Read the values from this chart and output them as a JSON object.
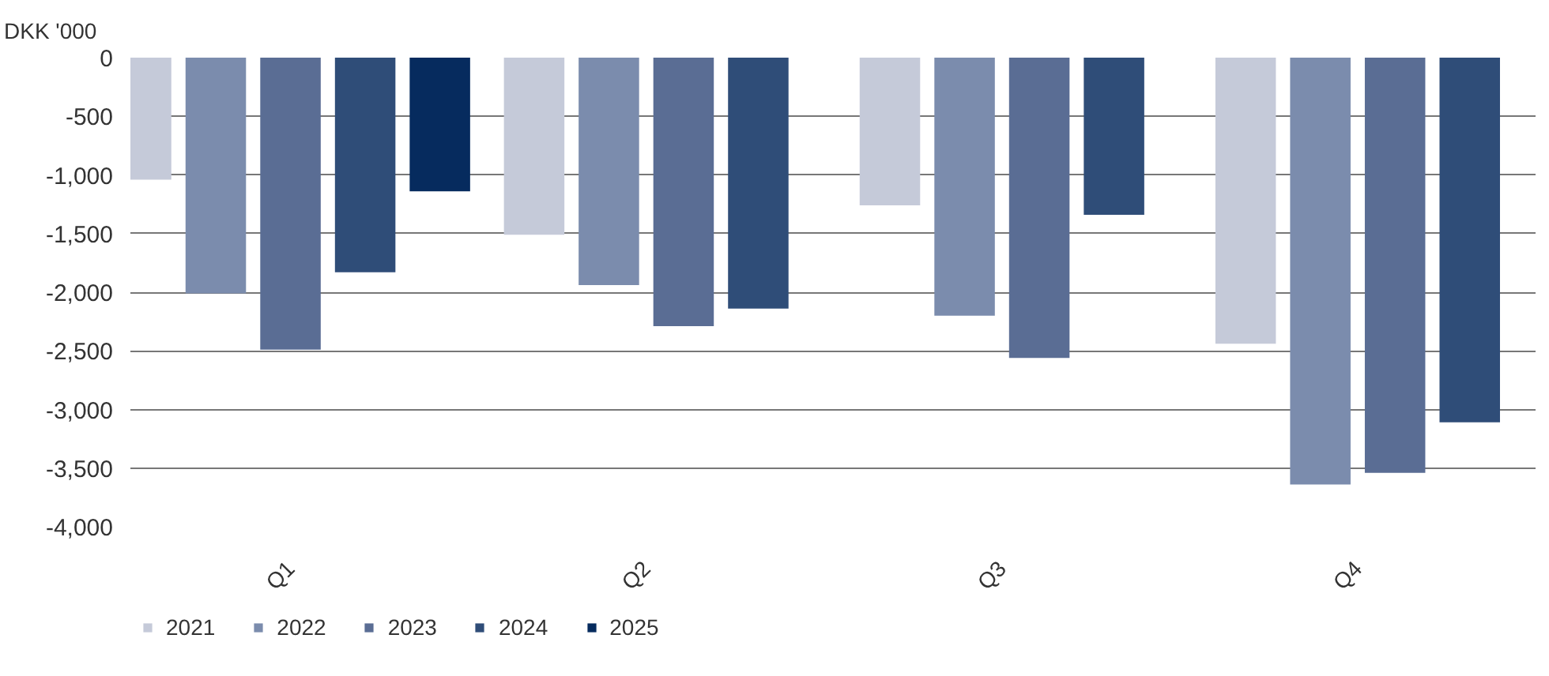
{
  "chart_data": {
    "type": "bar",
    "ylabel": "DKK  '000",
    "categories": [
      "Q1",
      "Q2",
      "Q3",
      "Q4"
    ],
    "series": [
      {
        "name": "2021",
        "color": "#c5cad9",
        "values": [
          -1040,
          -1510,
          -1260,
          -2440
        ]
      },
      {
        "name": "2022",
        "color": "#7b8cad",
        "values": [
          -2010,
          -1940,
          -2200,
          -3640
        ]
      },
      {
        "name": "2023",
        "color": "#5a6d94",
        "values": [
          -2490,
          -2290,
          -2560,
          -3540
        ]
      },
      {
        "name": "2024",
        "color": "#2f4d78",
        "values": [
          -1830,
          -2140,
          -1340,
          -3110
        ]
      },
      {
        "name": "2025",
        "color": "#062b5e",
        "values": [
          -1140,
          null,
          null,
          null
        ]
      }
    ],
    "ylim": [
      -4000,
      0
    ],
    "yticks": [
      {
        "value": -4000,
        "label": "-4,000"
      },
      {
        "value": -3500,
        "label": "-3,500"
      },
      {
        "value": -3000,
        "label": "-3,000"
      },
      {
        "value": -2500,
        "label": "-2,500"
      },
      {
        "value": -2000,
        "label": "-2,000"
      },
      {
        "value": -1500,
        "label": "-1,500"
      },
      {
        "value": -1000,
        "label": "-1,000"
      },
      {
        "value": -500,
        "label": "-500"
      },
      0
    ],
    "grid": "y",
    "legend": "bottom left"
  }
}
